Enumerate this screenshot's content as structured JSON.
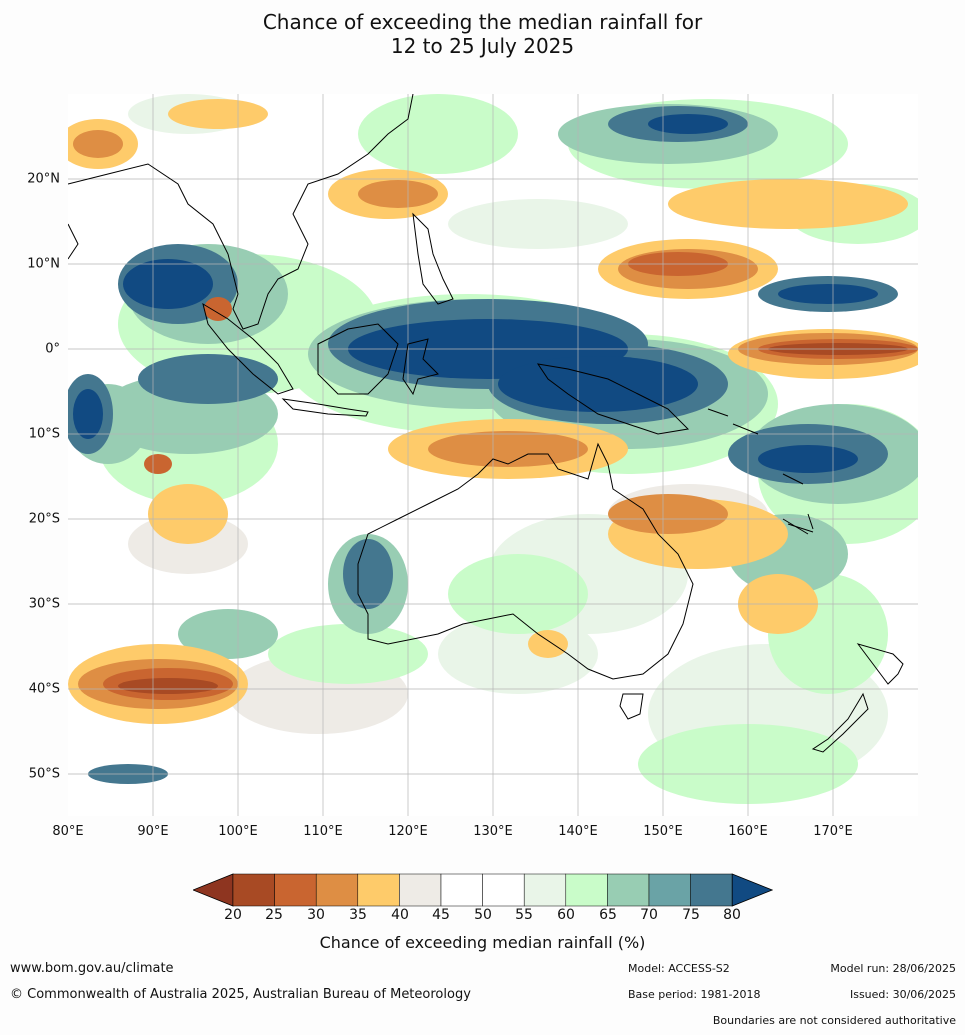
{
  "title": {
    "line1": "Chance of exceeding the median rainfall for",
    "line2": "12 to 25 July 2025"
  },
  "map": {
    "lat_labels": [
      "20°N",
      "10°N",
      "0°",
      "10°S",
      "20°S",
      "30°S",
      "40°S",
      "50°S"
    ],
    "lon_labels": [
      "80°E",
      "90°E",
      "100°E",
      "110°E",
      "120°E",
      "130°E",
      "140°E",
      "150°E",
      "160°E",
      "170°E"
    ]
  },
  "colorbar": {
    "title": "Chance of exceeding median rainfall (%)",
    "ticks": [
      "20",
      "25",
      "30",
      "35",
      "40",
      "45",
      "50",
      "55",
      "60",
      "65",
      "70",
      "75",
      "80"
    ],
    "colors": {
      "below_20": "#8e3520",
      "c20_25": "#a84a24",
      "c25_30": "#c96530",
      "c30_35": "#de8e44",
      "c35_40": "#fecb6a",
      "c40_45": "#eeebe6",
      "c45_50": "#ffffff",
      "c50_55": "#ffffff",
      "c55_60": "#e9f5e8",
      "c60_65": "#c9fcc9",
      "c65_70": "#98cdb3",
      "c70_75": "#6aa3a6",
      "c75_80": "#44778f",
      "above_80": "#114a82"
    }
  },
  "footer": {
    "website": "www.bom.gov.au/climate",
    "copyright": "© Commonwealth of Australia 2025, Australian Bureau of Meteorology",
    "model": "Model: ACCESS-S2",
    "base_period": "Base period: 1981-2018",
    "model_run": "Model run: 28/06/2025",
    "issued": "Issued: 30/06/2025",
    "boundaries_note": "Boundaries are not considered authoritative"
  }
}
